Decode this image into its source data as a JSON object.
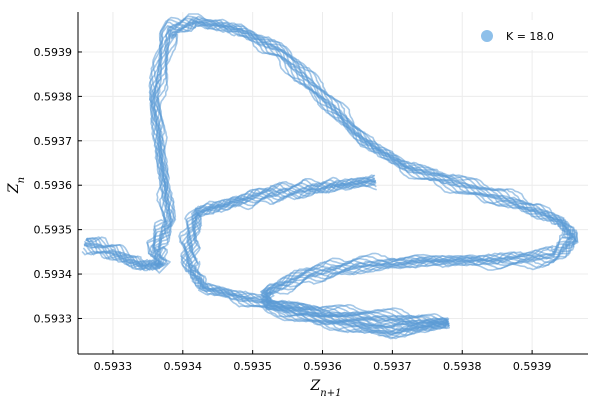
{
  "chart_data": {
    "type": "scatter",
    "title": "",
    "xlabel": "Z",
    "xlabel_sub": "n+1",
    "ylabel": "Z",
    "ylabel_sub": "n",
    "xlim": [
      0.59325,
      0.59398
    ],
    "ylim": [
      0.59322,
      0.59399
    ],
    "x_ticks": [
      0.5933,
      0.5934,
      0.5935,
      0.5936,
      0.5937,
      0.5938,
      0.5939
    ],
    "x_tick_labels": [
      "0.5933",
      "0.5934",
      "0.5935",
      "0.5936",
      "0.5937",
      "0.5938",
      "0.5939"
    ],
    "y_ticks": [
      0.5933,
      0.5934,
      0.5935,
      0.5936,
      0.5937,
      0.5938,
      0.5939
    ],
    "y_tick_labels": [
      "0.5933",
      "0.5934",
      "0.5935",
      "0.5936",
      "0.5937",
      "0.5938",
      "0.5939"
    ],
    "grid": true,
    "legend_position": "top-right",
    "series": [
      {
        "name": "K = 18.0",
        "color": "#5b9bd5",
        "legend_color": "#8ec0ea",
        "skeleton": [
          [
            0.59326,
            0.59347
          ],
          [
            0.5933,
            0.59345
          ],
          [
            0.59334,
            0.59342
          ],
          [
            0.59337,
            0.59342
          ],
          [
            0.59336,
            0.59346
          ],
          [
            0.59338,
            0.59352
          ],
          [
            0.59337,
            0.59365
          ],
          [
            0.59336,
            0.5938
          ],
          [
            0.59338,
            0.59395
          ],
          [
            0.59342,
            0.59397
          ],
          [
            0.59348,
            0.59395
          ],
          [
            0.59354,
            0.5939
          ],
          [
            0.5936,
            0.5938
          ],
          [
            0.59366,
            0.5937
          ],
          [
            0.59372,
            0.59364
          ],
          [
            0.5938,
            0.5936
          ],
          [
            0.59388,
            0.59356
          ],
          [
            0.59394,
            0.59352
          ],
          [
            0.59396,
            0.59348
          ],
          [
            0.59393,
            0.59344
          ],
          [
            0.59385,
            0.59343
          ],
          [
            0.59375,
            0.59343
          ],
          [
            0.59365,
            0.59342
          ],
          [
            0.59358,
            0.5934
          ],
          [
            0.59352,
            0.59336
          ],
          [
            0.59352,
            0.59333
          ],
          [
            0.5936,
            0.59331
          ],
          [
            0.5937,
            0.5933
          ],
          [
            0.59378,
            0.59329
          ],
          [
            0.5937,
            0.59327
          ],
          [
            0.5936,
            0.5933
          ],
          [
            0.5935,
            0.59334
          ],
          [
            0.59343,
            0.59337
          ],
          [
            0.59341,
            0.59342
          ],
          [
            0.59341,
            0.59348
          ],
          [
            0.59342,
            0.59354
          ],
          [
            0.59347,
            0.59356
          ],
          [
            0.59352,
            0.59358
          ],
          [
            0.59357,
            0.59359
          ],
          [
            0.59362,
            0.5936
          ],
          [
            0.59368,
            0.59361
          ]
        ]
      }
    ]
  }
}
